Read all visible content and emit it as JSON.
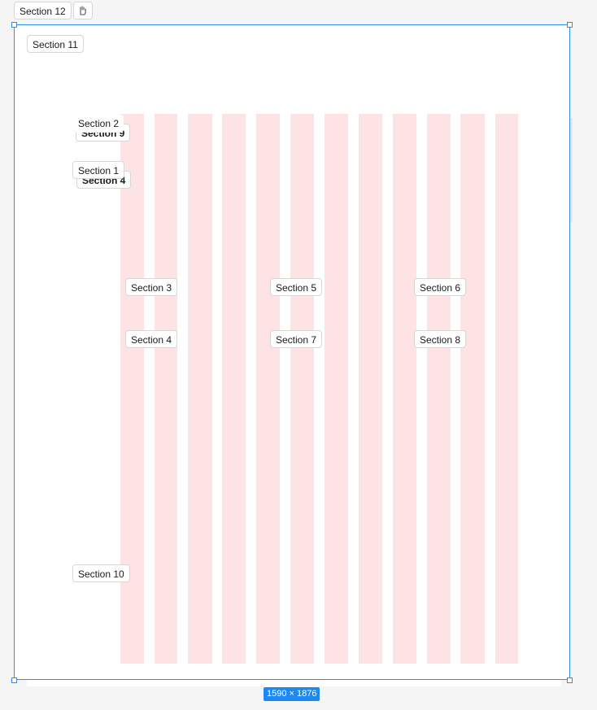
{
  "top_bar": {
    "frame_label": "Section 12",
    "icon_name": "hand-code-icon"
  },
  "frame": {
    "title_label": "Section 11",
    "size_badge": "1590 × 1876",
    "border_color": "#2f8cf0",
    "column_color": "#fde3e3",
    "column_count": 12
  },
  "labels": {
    "s2": "Section 2",
    "s9": "Section 9",
    "s1": "Section 1",
    "s4_hidden": "Section 4",
    "s3": "Section 3",
    "s5": "Section 5",
    "s6": "Section 6",
    "s4": "Section 4",
    "s7": "Section 7",
    "s8": "Section 8",
    "s10": "Section 10"
  }
}
